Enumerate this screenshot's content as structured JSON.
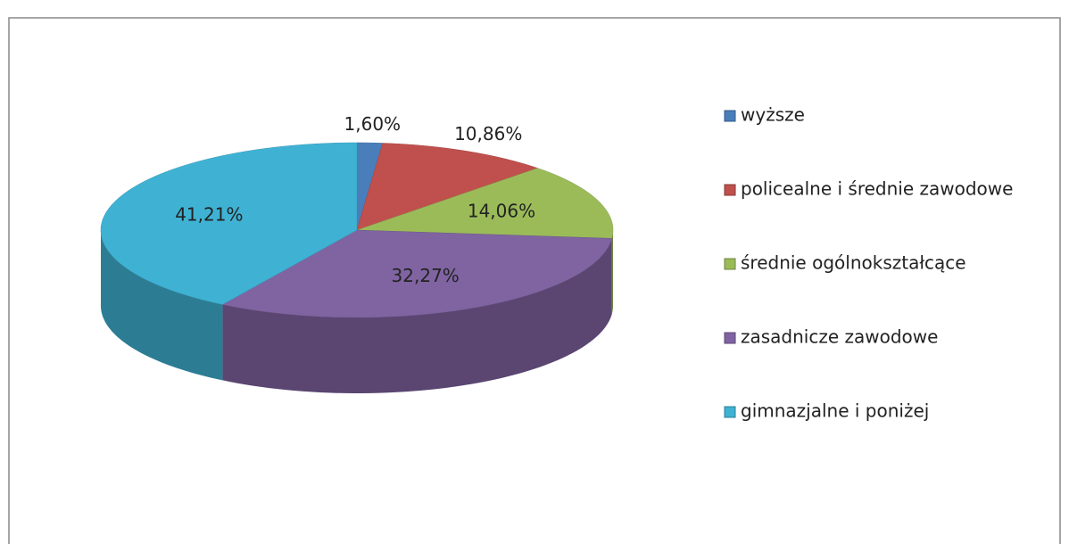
{
  "chart_data": {
    "type": "pie",
    "categories": [
      "wyższe",
      "policealne i średnie zawodowe",
      "średnie ogólnokształcące",
      "zasadnicze zawodowe",
      "gimnazjalne i poniżej"
    ],
    "values": [
      1.6,
      10.86,
      14.06,
      32.27,
      41.21
    ],
    "value_labels": [
      "1,60%",
      "10,86%",
      "14,06%",
      "32,27%",
      "41,21%"
    ],
    "colors": [
      "#4a7ebb",
      "#c0504d",
      "#9bbb59",
      "#8064a2",
      "#3fb2d4"
    ],
    "legend": "right"
  }
}
